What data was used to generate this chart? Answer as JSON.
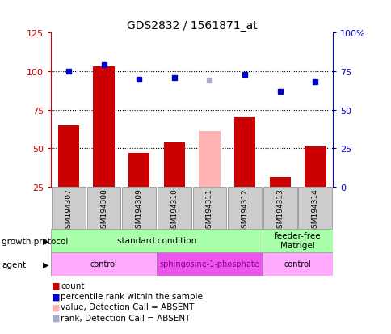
{
  "title": "GDS2832 / 1561871_at",
  "samples": [
    "GSM194307",
    "GSM194308",
    "GSM194309",
    "GSM194310",
    "GSM194311",
    "GSM194312",
    "GSM194313",
    "GSM194314"
  ],
  "bar_values": [
    65,
    103,
    47,
    54,
    61,
    70,
    31,
    51
  ],
  "bar_colors": [
    "#cc0000",
    "#cc0000",
    "#cc0000",
    "#cc0000",
    "#ffb3b3",
    "#cc0000",
    "#cc0000",
    "#cc0000"
  ],
  "rank_values_pct": [
    75,
    79,
    70,
    71,
    69,
    73,
    62,
    68
  ],
  "rank_colors": [
    "#0000cc",
    "#0000cc",
    "#0000cc",
    "#0000cc",
    "#aaaacc",
    "#0000cc",
    "#0000cc",
    "#0000cc"
  ],
  "ylim_left": [
    25,
    125
  ],
  "ylim_right": [
    0,
    100
  ],
  "yticks_left": [
    25,
    50,
    75,
    100,
    125
  ],
  "yticks_right": [
    0,
    25,
    50,
    75,
    100
  ],
  "ytick_labels_left": [
    "25",
    "50",
    "75",
    "100",
    "125"
  ],
  "ytick_labels_right": [
    "0",
    "25",
    "50",
    "75",
    "100%"
  ],
  "hlines": [
    50,
    75,
    100
  ],
  "gp_groups": [
    {
      "label": "standard condition",
      "start": 0,
      "end": 6,
      "color": "#aaffaa"
    },
    {
      "label": "feeder-free\nMatrigel",
      "start": 6,
      "end": 8,
      "color": "#aaffaa"
    }
  ],
  "ag_groups": [
    {
      "label": "control",
      "start": 0,
      "end": 3,
      "color": "#ffaaff"
    },
    {
      "label": "sphingosine-1-phosphate",
      "start": 3,
      "end": 6,
      "color": "#ee55ee"
    },
    {
      "label": "control",
      "start": 6,
      "end": 8,
      "color": "#ffaaff"
    }
  ],
  "legend_items": [
    {
      "label": "count",
      "color": "#cc0000"
    },
    {
      "label": "percentile rank within the sample",
      "color": "#0000cc"
    },
    {
      "label": "value, Detection Call = ABSENT",
      "color": "#ffb3b3"
    },
    {
      "label": "rank, Detection Call = ABSENT",
      "color": "#aaaacc"
    }
  ],
  "left_axis_color": "#cc0000",
  "right_axis_color": "#0000cc"
}
